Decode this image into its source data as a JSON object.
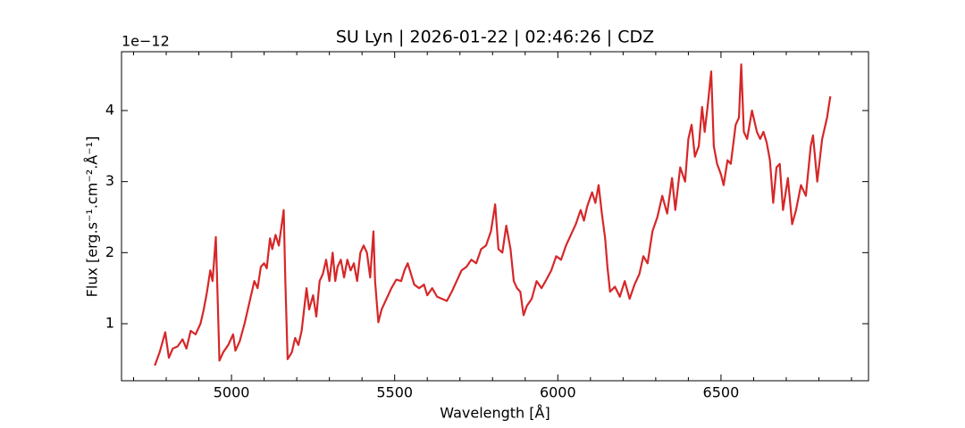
{
  "chart_data": {
    "type": "line",
    "title": "SU Lyn | 2026-01-22 | 02:46:26 | CDZ",
    "x_label": "Wavelength [Å]",
    "y_label": "Flux [erg.s⁻¹.cm⁻².Å⁻¹]",
    "y_offset_label": "1e−12",
    "xlim": [
      4663,
      6952
    ],
    "ylim": [
      0.197,
      4.828
    ],
    "xticks": [
      5000,
      5500,
      6000,
      6500
    ],
    "x_minor_ticks": [
      4700,
      4800,
      4900,
      5100,
      5200,
      5300,
      5400,
      5600,
      5700,
      5800,
      5900,
      6100,
      6200,
      6300,
      6400,
      6600,
      6700,
      6800,
      6900
    ],
    "yticks": [
      1,
      2,
      3,
      4
    ],
    "grid": false,
    "series": [
      {
        "name": "SU Lyn",
        "color": "#d62728",
        "x": [
          4765,
          4780,
          4797,
          4808,
          4820,
          4835,
          4850,
          4862,
          4875,
          4890,
          4905,
          4915,
          4925,
          4935,
          4942,
          4952,
          4958,
          4963,
          4975,
          4990,
          5005,
          5012,
          5025,
          5040,
          5050,
          5060,
          5070,
          5080,
          5090,
          5100,
          5108,
          5118,
          5125,
          5135,
          5145,
          5160,
          5165,
          5172,
          5185,
          5195,
          5205,
          5215,
          5230,
          5238,
          5250,
          5260,
          5270,
          5280,
          5290,
          5300,
          5310,
          5318,
          5325,
          5335,
          5345,
          5355,
          5365,
          5375,
          5385,
          5395,
          5405,
          5415,
          5425,
          5435,
          5440,
          5450,
          5460,
          5475,
          5490,
          5505,
          5520,
          5530,
          5540,
          5550,
          5560,
          5575,
          5590,
          5600,
          5615,
          5630,
          5645,
          5660,
          5675,
          5690,
          5705,
          5720,
          5735,
          5750,
          5765,
          5780,
          5795,
          5808,
          5818,
          5830,
          5842,
          5855,
          5865,
          5875,
          5885,
          5895,
          5905,
          5920,
          5935,
          5950,
          5965,
          5980,
          5995,
          6010,
          6025,
          6040,
          6055,
          6070,
          6080,
          6090,
          6105,
          6115,
          6125,
          6135,
          6145,
          6152,
          6160,
          6175,
          6190,
          6205,
          6220,
          6235,
          6250,
          6262,
          6275,
          6290,
          6305,
          6320,
          6335,
          6350,
          6360,
          6375,
          6390,
          6400,
          6410,
          6420,
          6432,
          6442,
          6450,
          6460,
          6470,
          6478,
          6488,
          6500,
          6508,
          6520,
          6530,
          6545,
          6555,
          6562,
          6570,
          6580,
          6595,
          6610,
          6620,
          6630,
          6640,
          6650,
          6660,
          6670,
          6680,
          6690,
          6705,
          6718,
          6730,
          6745,
          6760,
          6775,
          6782,
          6795,
          6810,
          6825,
          6835
        ],
        "values": [
          0.41,
          0.6,
          0.88,
          0.52,
          0.65,
          0.68,
          0.78,
          0.65,
          0.9,
          0.85,
          1.0,
          1.2,
          1.45,
          1.75,
          1.6,
          2.22,
          1.3,
          0.48,
          0.6,
          0.7,
          0.85,
          0.62,
          0.75,
          1.0,
          1.2,
          1.4,
          1.6,
          1.5,
          1.8,
          1.85,
          1.78,
          2.2,
          2.05,
          2.25,
          2.1,
          2.6,
          1.6,
          0.5,
          0.6,
          0.8,
          0.7,
          0.9,
          1.5,
          1.2,
          1.4,
          1.1,
          1.6,
          1.7,
          1.9,
          1.6,
          2.0,
          1.6,
          1.8,
          1.9,
          1.65,
          1.9,
          1.75,
          1.85,
          1.6,
          2.0,
          2.1,
          2.0,
          1.65,
          2.3,
          1.6,
          1.02,
          1.2,
          1.35,
          1.5,
          1.62,
          1.6,
          1.75,
          1.85,
          1.7,
          1.55,
          1.5,
          1.55,
          1.4,
          1.5,
          1.38,
          1.35,
          1.32,
          1.45,
          1.6,
          1.75,
          1.8,
          1.9,
          1.85,
          2.05,
          2.1,
          2.3,
          2.68,
          2.05,
          2.0,
          2.38,
          2.05,
          1.6,
          1.5,
          1.45,
          1.12,
          1.25,
          1.35,
          1.6,
          1.5,
          1.62,
          1.75,
          1.95,
          1.9,
          2.1,
          2.25,
          2.4,
          2.6,
          2.45,
          2.65,
          2.85,
          2.7,
          2.95,
          2.55,
          2.2,
          1.8,
          1.45,
          1.52,
          1.38,
          1.6,
          1.35,
          1.55,
          1.7,
          1.95,
          1.85,
          2.3,
          2.5,
          2.8,
          2.55,
          3.05,
          2.6,
          3.2,
          3.0,
          3.6,
          3.8,
          3.35,
          3.5,
          4.05,
          3.7,
          4.1,
          4.55,
          3.5,
          3.25,
          3.1,
          2.95,
          3.3,
          3.25,
          3.8,
          3.9,
          4.65,
          3.7,
          3.6,
          4.0,
          3.7,
          3.6,
          3.7,
          3.55,
          3.3,
          2.7,
          3.2,
          3.25,
          2.6,
          3.05,
          2.4,
          2.6,
          2.95,
          2.8,
          3.5,
          3.65,
          3.0,
          3.6,
          3.9,
          4.2
        ]
      }
    ]
  }
}
